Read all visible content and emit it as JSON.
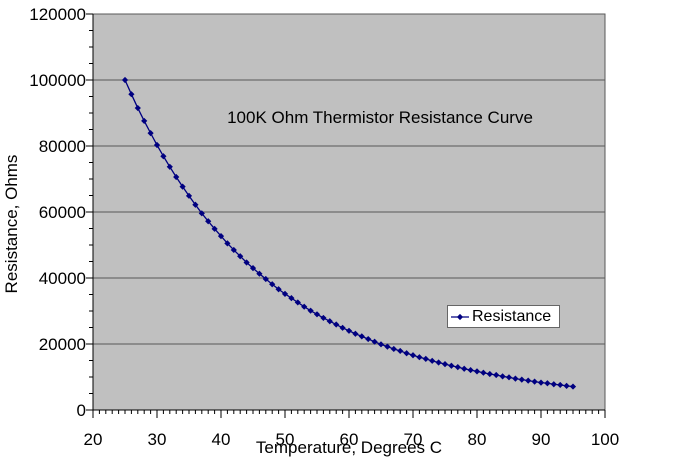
{
  "chart_data": {
    "type": "line",
    "title": "100K Ohm Thermistor Resistance Curve",
    "xlabel": "Temperature, Degrees C",
    "ylabel": "Resistance, Ohms",
    "xlim": [
      20,
      100
    ],
    "ylim": [
      0,
      120000
    ],
    "x_ticks": [
      20,
      30,
      40,
      50,
      60,
      70,
      80,
      90,
      100
    ],
    "y_ticks": [
      0,
      20000,
      40000,
      60000,
      80000,
      100000,
      120000
    ],
    "x_minor_tick_step": 1,
    "y_minor_tick_step": 5000,
    "grid": "horizontal-only",
    "legend": {
      "position": "middle-right",
      "entries": [
        {
          "label": "Resistance",
          "marker": "diamond",
          "color": "#000080"
        }
      ]
    },
    "series": [
      {
        "name": "Resistance",
        "style": "line-with-diamond-markers",
        "color": "#000080",
        "x": [
          25,
          26,
          27,
          28,
          29,
          30,
          31,
          32,
          33,
          34,
          35,
          36,
          37,
          38,
          39,
          40,
          41,
          42,
          43,
          44,
          45,
          46,
          47,
          48,
          49,
          50,
          51,
          52,
          53,
          54,
          55,
          56,
          57,
          58,
          59,
          60,
          61,
          62,
          63,
          64,
          65,
          66,
          67,
          68,
          69,
          70,
          71,
          72,
          73,
          74,
          75,
          76,
          77,
          78,
          79,
          80,
          81,
          82,
          83,
          84,
          85,
          86,
          87,
          88,
          89,
          90,
          91,
          92,
          93,
          94,
          95
        ],
        "y": [
          100000,
          95700,
          91500,
          87600,
          83900,
          80300,
          76900,
          73700,
          70600,
          67700,
          64900,
          62200,
          59600,
          57200,
          54900,
          52700,
          50500,
          48500,
          46600,
          44700,
          43000,
          41300,
          39700,
          38100,
          36600,
          35200,
          33900,
          32600,
          31300,
          30100,
          29000,
          27900,
          26900,
          25900,
          24900,
          24000,
          23100,
          22300,
          21500,
          20700,
          19900,
          19200,
          18500,
          17900,
          17200,
          16600,
          16000,
          15500,
          14900,
          14400,
          13900,
          13400,
          13000,
          12500,
          12100,
          11700,
          11300,
          10900,
          10600,
          10200,
          9900,
          9500,
          9200,
          8900,
          8600,
          8300,
          8100,
          7800,
          7600,
          7300,
          7100
        ]
      }
    ],
    "colors": {
      "series": "#000080",
      "plot_bg": "#c0c0c0",
      "gridline": "#595959",
      "axis": "#000000",
      "text": "#000000",
      "legend_border": "#666666",
      "background": "#ffffff"
    }
  }
}
